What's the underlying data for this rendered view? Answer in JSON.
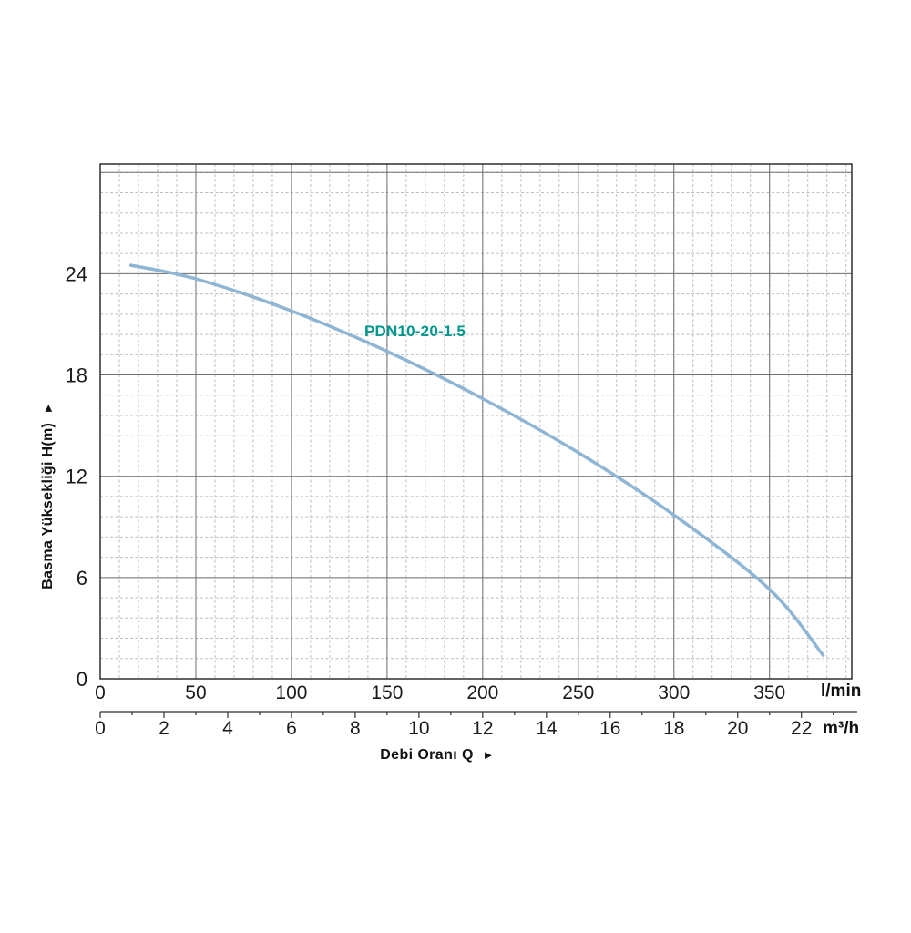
{
  "chart_data": {
    "type": "line",
    "title": "",
    "curve_label": "PDN10-20-1.5",
    "xlabel": "Debi Oranı Q",
    "xlabel_arrow": "►",
    "ylabel": "Basma Yüksekliği H(m)",
    "ylabel_arrow": "►",
    "x_axis_primary": {
      "unit": "l/min",
      "ticks": [
        0,
        50,
        100,
        150,
        200,
        250,
        300,
        350
      ],
      "max": 393,
      "minor_step": 10
    },
    "x_axis_secondary": {
      "unit": "m³/h",
      "ticks": [
        0,
        2,
        4,
        6,
        8,
        10,
        12,
        14,
        16,
        18,
        20,
        22
      ],
      "lmin_per_unit": 16.6667,
      "tick_step": 1
    },
    "y_axis": {
      "ticks": [
        0,
        6,
        12,
        18,
        24
      ],
      "major_lines": [
        6,
        12,
        18,
        24,
        30
      ],
      "max": 30.5,
      "minor_step": 1.2
    },
    "series": [
      {
        "name": "PDN10-20-1.5",
        "x_lmin": [
          16,
          50,
          100,
          150,
          200,
          250,
          300,
          350,
          378
        ],
        "h_m": [
          24.5,
          23.7,
          21.8,
          19.4,
          16.6,
          13.4,
          9.7,
          5.3,
          1.4
        ]
      }
    ],
    "grid": {
      "minor_on": true,
      "major_on": true
    },
    "colors": {
      "curve": "#8fb5d5",
      "curve_label": "#00968c",
      "major_grid": "#6f6f6f",
      "minor_grid": "#bdbdbd",
      "border": "#2f2f2f",
      "text": "#1a1a1a"
    }
  }
}
